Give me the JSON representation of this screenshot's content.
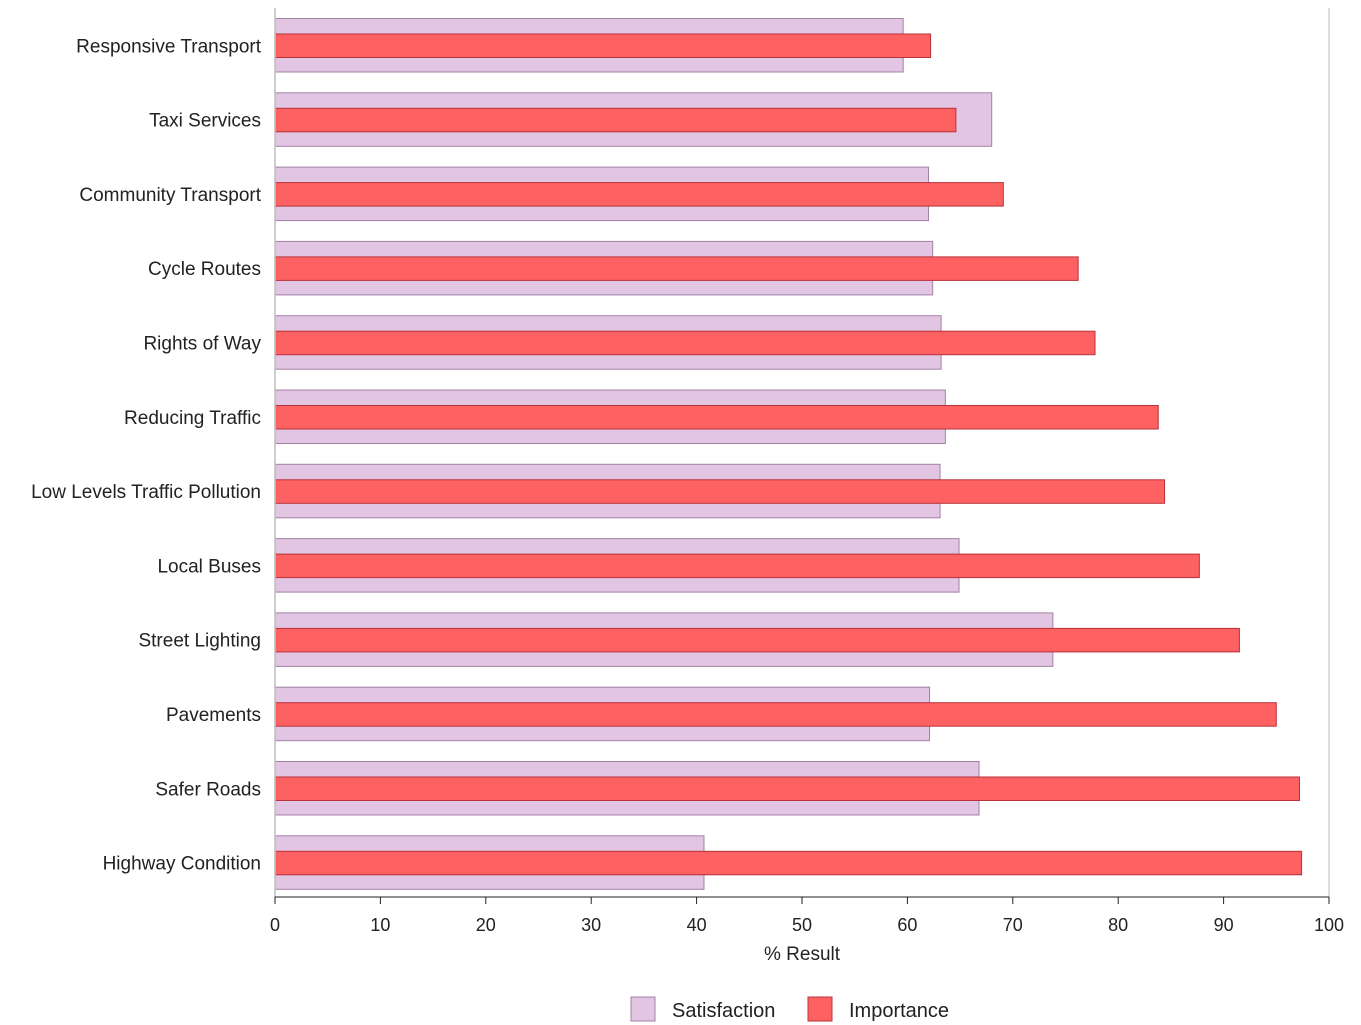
{
  "chart_data": {
    "type": "bar",
    "orientation": "horizontal",
    "categories": [
      "Responsive Transport",
      "Taxi Services",
      "Community Transport",
      "Cycle Routes",
      "Rights of Way",
      "Reducing Traffic",
      "Low Levels Traffic Pollution",
      "Local Buses",
      "Street Lighting",
      "Pavements",
      "Safer Roads",
      "Highway Condition"
    ],
    "series": [
      {
        "name": "Satisfaction",
        "color": "#e2c4e3",
        "values": [
          59.6,
          68.0,
          62.0,
          62.4,
          63.2,
          63.6,
          63.1,
          64.9,
          73.8,
          62.1,
          66.8,
          40.7
        ]
      },
      {
        "name": "Importance",
        "color": "#fd6161",
        "values": [
          62.2,
          64.6,
          69.1,
          76.2,
          77.8,
          83.8,
          84.4,
          87.7,
          91.5,
          95.0,
          97.2,
          97.4
        ]
      }
    ],
    "xlim": [
      0,
      100
    ],
    "xticks": [
      0,
      10,
      20,
      30,
      40,
      50,
      60,
      70,
      80,
      90,
      100
    ],
    "xlabel": "% Result",
    "legend_position": "bottom-center",
    "grid": false
  }
}
